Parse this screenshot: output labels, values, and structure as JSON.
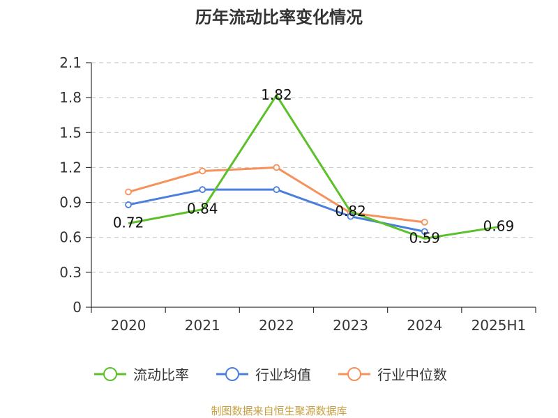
{
  "chart_data": {
    "type": "line",
    "title": "历年流动比率变化情况",
    "xlabel": "",
    "ylabel": "",
    "categories": [
      "2020",
      "2021",
      "2022",
      "2023",
      "2024",
      "2025H1"
    ],
    "yticks": [
      "0",
      "0.3",
      "0.6",
      "0.9",
      "1.2",
      "1.5",
      "1.8",
      "2.1"
    ],
    "ylim": [
      0,
      2.1
    ],
    "grid": true,
    "legend_position": "bottom",
    "series": [
      {
        "name": "流动比率",
        "color": "#5cc02a",
        "values": [
          0.72,
          0.84,
          1.82,
          0.82,
          0.59,
          0.69
        ],
        "labels": [
          "0.72",
          "0.84",
          "1.82",
          "0.82",
          "0.59",
          "0.69"
        ],
        "markers": false
      },
      {
        "name": "行业均值",
        "color": "#4a7fdb",
        "values": [
          0.88,
          1.01,
          1.01,
          0.78,
          0.65,
          null
        ],
        "markers": true
      },
      {
        "name": "行业中位数",
        "color": "#f7915b",
        "values": [
          0.99,
          1.17,
          1.2,
          0.81,
          0.73,
          null
        ],
        "markers": true
      }
    ]
  },
  "source_note": "制图数据来自恒生聚源数据库"
}
